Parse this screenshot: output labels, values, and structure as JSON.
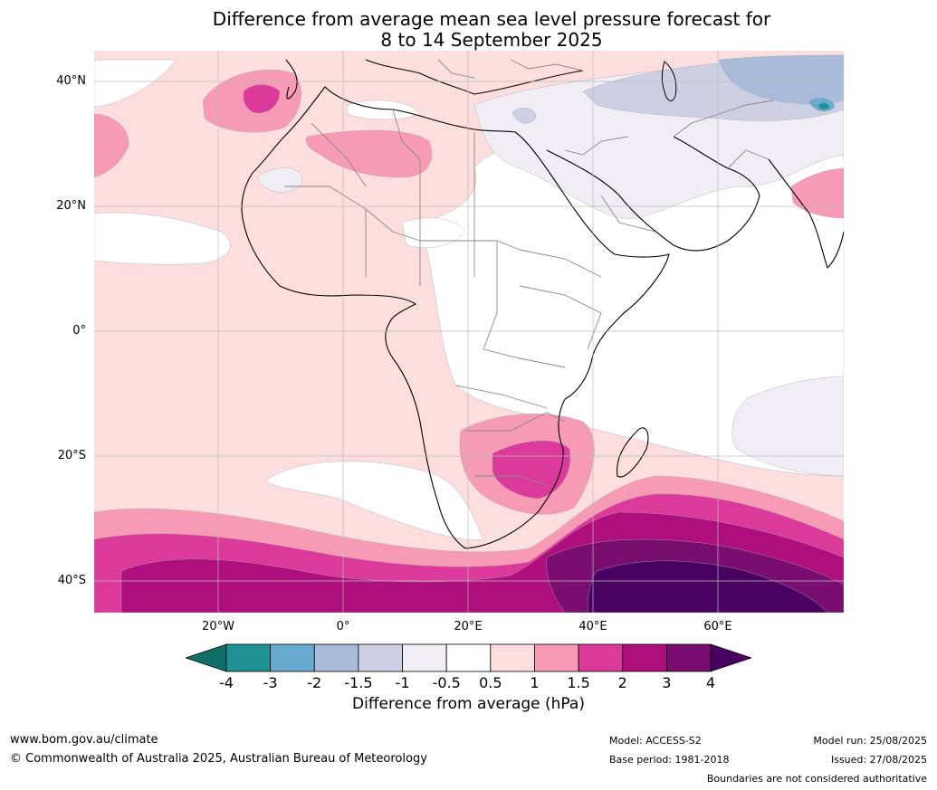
{
  "title_line1": "Difference from average mean sea level pressure forecast for",
  "title_line2": "8 to 14 September 2025",
  "lat_labels": [
    "40°N",
    "20°N",
    "0°",
    "20°S",
    "40°S"
  ],
  "lon_labels": [
    "20°W",
    "0°",
    "20°E",
    "40°E",
    "60°E"
  ],
  "colorbar": {
    "label": "Difference from average (hPa)",
    "ticks": [
      "-4",
      "-3",
      "-2",
      "-1.5",
      "-1",
      "-0.5",
      "0.5",
      "1",
      "1.5",
      "2",
      "3",
      "4"
    ],
    "colors": [
      "#0f6f66",
      "#1f9295",
      "#69aad0",
      "#a8bcd9",
      "#cdd0e5",
      "#f0edf4",
      "#ffffff",
      "#fddede",
      "#f79ab5",
      "#dc3a9b",
      "#ae0f7c",
      "#790e70",
      "#4a0262"
    ]
  },
  "footer": {
    "url": "www.bom.gov.au/climate",
    "copyright": "© Commonwealth of Australia 2025, Australian Bureau of Meteorology",
    "model": "Model: ACCESS-S2",
    "base_period": "Base period: 1981-2018",
    "model_run": "Model run: 25/08/2025",
    "issued": "Issued: 27/08/2025",
    "disclaimer": "Boundaries are not considered authoritative"
  }
}
